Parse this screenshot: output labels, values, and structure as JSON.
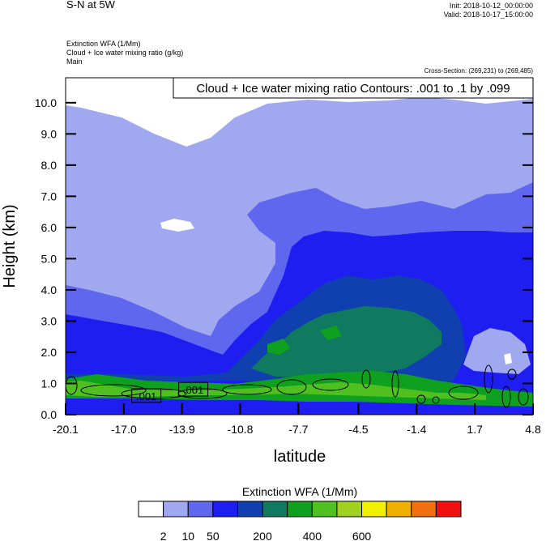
{
  "header": {
    "title": "S-N at 5W",
    "init": "Init: 2018-10-12_00:00:00",
    "valid": "Valid: 2018-10-17_15:00:00",
    "field1": "Extinction WFA   (1/Mm)",
    "field2": "Cloud + Ice water mixing ratio   (g/kg)",
    "field3": "Main",
    "cross_section": "Cross-Section: (269,231) to (269,485)"
  },
  "chart_data": {
    "type": "heatmap",
    "xlabel": "latitude",
    "ylabel": "Height (km)",
    "xlim": [
      -20.1,
      4.8
    ],
    "ylim": [
      0.0,
      10.8
    ],
    "x_ticks": [
      "-20.1",
      "-17.0",
      "-13.9",
      "-10.8",
      "-7.7",
      "-4.5",
      "-1.4",
      "1.7",
      "4.8"
    ],
    "y_ticks": [
      "0.0",
      "1.0",
      "2.0",
      "3.0",
      "4.0",
      "5.0",
      "6.0",
      "7.0",
      "8.0",
      "9.0",
      "10.0"
    ],
    "contour_info": "Cloud + Ice water mixing ratio Contours: .001 to .1 by .099",
    "contour_labels": [
      {
        "text": ".001",
        "x": -15.8,
        "y": 0.6
      },
      {
        "text": ".001",
        "x": -13.3,
        "y": 0.8
      }
    ],
    "colorbar": {
      "title": "Extinction WFA  (1/Mm)",
      "colors": [
        "#ffffff",
        "#a0a8f0",
        "#5f67ee",
        "#1e1ef0",
        "#1040b0",
        "#0f7a60",
        "#10a020",
        "#50c020",
        "#a0d020",
        "#f0f000",
        "#f0b000",
        "#f07010",
        "#f01010"
      ],
      "labels": [
        "2",
        "10",
        "50",
        "200",
        "400",
        "600"
      ]
    }
  }
}
